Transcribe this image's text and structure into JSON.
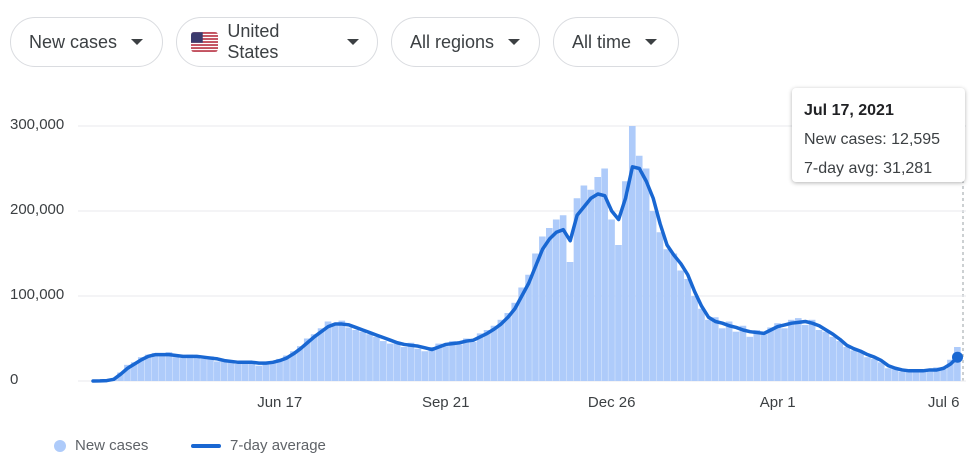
{
  "controls": [
    "New cases",
    "United States",
    "All regions",
    "All time"
  ],
  "chart_data": {
    "type": "bar",
    "categories": [
      null,
      null,
      null,
      null,
      null,
      null,
      null,
      null,
      null,
      null,
      null,
      null,
      null,
      null,
      null,
      null,
      null,
      null,
      null,
      null,
      null,
      null,
      null,
      null,
      null,
      null,
      null,
      "Jun 17",
      null,
      null,
      null,
      null,
      null,
      null,
      null,
      null,
      null,
      null,
      null,
      null,
      null,
      null,
      null,
      null,
      null,
      null,
      null,
      null,
      null,
      null,
      null,
      "Sep 21",
      null,
      null,
      null,
      null,
      null,
      null,
      null,
      null,
      null,
      null,
      null,
      null,
      null,
      null,
      null,
      null,
      null,
      null,
      null,
      null,
      null,
      null,
      null,
      "Dec 26",
      null,
      null,
      null,
      null,
      null,
      null,
      null,
      null,
      null,
      null,
      null,
      null,
      null,
      null,
      null,
      null,
      null,
      null,
      null,
      null,
      null,
      null,
      null,
      "Apr 1",
      null,
      null,
      null,
      null,
      null,
      null,
      null,
      null,
      null,
      null,
      null,
      null,
      null,
      null,
      null,
      null,
      null,
      null,
      null,
      null,
      null,
      null,
      null,
      "Jul 6",
      null,
      null
    ],
    "series": [
      {
        "name": "New cases",
        "type": "bar",
        "color": "#aecbfa",
        "values": [
          0,
          200,
          800,
          3000,
          10000,
          19000,
          22000,
          28000,
          31000,
          33000,
          30000,
          34000,
          28000,
          27000,
          31000,
          30000,
          26000,
          29000,
          23000,
          25000,
          22000,
          20000,
          24000,
          23000,
          18000,
          22000,
          23000,
          26000,
          30000,
          35000,
          41000,
          50000,
          55000,
          62000,
          70000,
          65000,
          71000,
          63000,
          60000,
          58000,
          55000,
          52000,
          47000,
          44000,
          46000,
          40000,
          45000,
          38000,
          35000,
          40000,
          44000,
          41000,
          47000,
          43000,
          50000,
          46000,
          56000,
          60000,
          65000,
          72000,
          80000,
          92000,
          110000,
          125000,
          150000,
          170000,
          180000,
          190000,
          195000,
          140000,
          215000,
          230000,
          225000,
          240000,
          250000,
          190000,
          160000,
          235000,
          300000,
          265000,
          250000,
          200000,
          175000,
          155000,
          150000,
          130000,
          120000,
          100000,
          85000,
          72000,
          75000,
          62000,
          70000,
          58000,
          65000,
          52000,
          60000,
          55000,
          63000,
          68000,
          62000,
          72000,
          74000,
          66000,
          72000,
          60000,
          58000,
          52000,
          47000,
          40000,
          36000,
          34000,
          28000,
          26000,
          22000,
          15000,
          14000,
          11000,
          12000,
          10000,
          13000,
          11000,
          16000,
          14000,
          25000,
          40000
        ]
      },
      {
        "name": "7-day average",
        "type": "line",
        "color": "#1967d2",
        "values": [
          0,
          100,
          500,
          2000,
          8000,
          15000,
          20000,
          25000,
          29000,
          31000,
          31000,
          31000,
          30000,
          29000,
          29000,
          29000,
          28000,
          27000,
          26000,
          24000,
          23000,
          22000,
          22000,
          22000,
          21000,
          21000,
          22000,
          24000,
          27000,
          32000,
          38000,
          45000,
          52000,
          58000,
          64000,
          67000,
          67000,
          66000,
          63000,
          60000,
          57000,
          54000,
          51000,
          48000,
          45000,
          43000,
          42000,
          41000,
          39000,
          37000,
          40000,
          43000,
          44000,
          45000,
          47000,
          48000,
          52000,
          56000,
          61000,
          67000,
          75000,
          85000,
          100000,
          115000,
          135000,
          155000,
          167000,
          175000,
          178000,
          165000,
          195000,
          205000,
          215000,
          220000,
          218000,
          200000,
          190000,
          215000,
          252000,
          250000,
          235000,
          215000,
          185000,
          160000,
          148000,
          138000,
          125000,
          105000,
          88000,
          75000,
          70000,
          68000,
          65000,
          63000,
          60000,
          58000,
          57000,
          56000,
          60000,
          64000,
          66000,
          68000,
          69000,
          70000,
          68000,
          65000,
          60000,
          55000,
          49000,
          42000,
          38000,
          35000,
          31000,
          28000,
          24000,
          18000,
          15000,
          13000,
          12000,
          12000,
          12000,
          13000,
          13000,
          15000,
          20000,
          28000
        ]
      }
    ],
    "ylim": [
      0,
      300000
    ],
    "yticks": [
      0,
      {
        "value": 100000,
        "label": "100,000"
      },
      {
        "value": 200000,
        "label": "200,000"
      },
      {
        "value": 300000,
        "label": "300,000"
      }
    ],
    "grid": true
  },
  "tooltip": {
    "title": "Jul 17, 2021",
    "lines": [
      "New cases: 12,595",
      "7-day avg: 31,281"
    ]
  }
}
